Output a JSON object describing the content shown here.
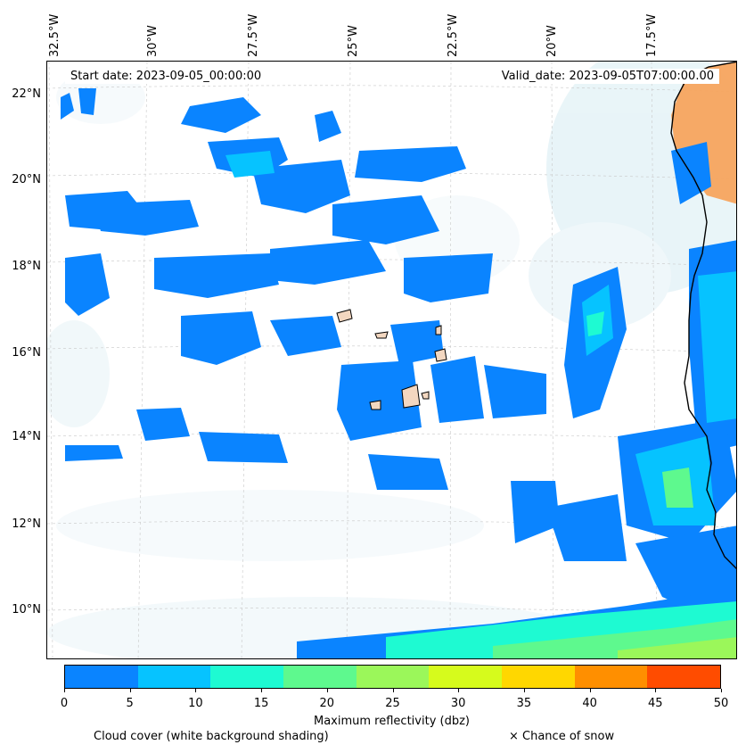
{
  "map": {
    "start_date": "Start date: 2023-09-05_00:00:00",
    "valid_date": "Valid_date: 2023-09-05T07:00:00.00",
    "lon_labels": [
      "32.5°W",
      "30°W",
      "27.5°W",
      "25°W",
      "22.5°W",
      "20°W",
      "17.5°W"
    ],
    "lat_labels": [
      "22°N",
      "20°N",
      "18°N",
      "16°N",
      "14°N",
      "12°N",
      "10°N"
    ],
    "extent": {
      "lon_min": -32.7,
      "lon_max": -15.9,
      "lat_min": 8.9,
      "lat_max": 22.8
    }
  },
  "colorbar": {
    "label": "Maximum reflectivity (dbz)",
    "ticks": [
      "0",
      "5",
      "10",
      "15",
      "20",
      "25",
      "30",
      "35",
      "40",
      "45",
      "50"
    ],
    "colors": [
      "#0a84ff",
      "#06c3ff",
      "#1efad2",
      "#5ef98e",
      "#9bf75a",
      "#d6fb1c",
      "#ffd700",
      "#ff8f00",
      "#ff4c00"
    ]
  },
  "legend": {
    "cloud_cover": "Cloud cover (white background shading)",
    "snow": "× Chance of snow"
  }
}
